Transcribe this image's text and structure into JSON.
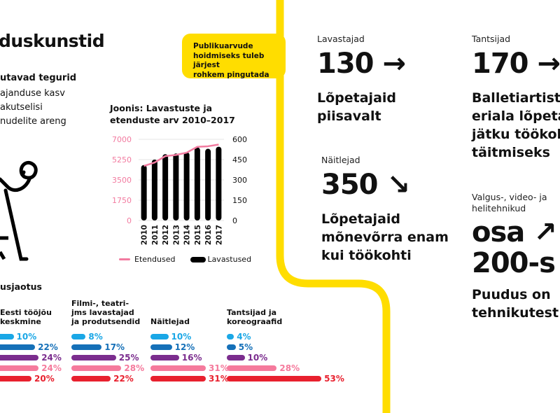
{
  "header": {
    "title": "duskunstid",
    "factors_heading": "utavad tegurid",
    "factors": [
      "ajanduse kasv",
      "akutselisi",
      "nudelite areng"
    ]
  },
  "callout": {
    "text_lines": [
      "Publikuarvude",
      "hoidmiseks tuleb järjest",
      "rohkem pingutada"
    ]
  },
  "colors": {
    "yellow": "#FFDD00",
    "pink_line": "#F27BA0",
    "bars_black": "#000000",
    "light_blue": "#1AA7E6",
    "blue": "#1570B8",
    "purple": "#7B2D8E",
    "pink": "#F57A9C",
    "red": "#E8202E"
  },
  "chart_data": {
    "type": "bar",
    "title": "Joonis: Lavastuste ja etenduste arv 2010–2017",
    "categories": [
      "2010",
      "2011",
      "2012",
      "2013",
      "2014",
      "2015",
      "2016",
      "2017"
    ],
    "series": [
      {
        "name": "Lavastused",
        "type": "bar",
        "axis": "right",
        "values": [
          410,
          450,
          490,
          495,
          505,
          540,
          530,
          545
        ]
      },
      {
        "name": "Etendused",
        "type": "line",
        "axis": "left",
        "values": [
          4700,
          5000,
          5550,
          5650,
          5850,
          6350,
          6400,
          6550
        ]
      }
    ],
    "left_axis": {
      "ticks": [
        "7000",
        "5250",
        "3500",
        "1750",
        "0"
      ],
      "ylim": [
        0,
        7000
      ]
    },
    "right_axis": {
      "ticks": [
        "600",
        "450",
        "300",
        "150",
        "0"
      ],
      "ylim": [
        0,
        600
      ]
    },
    "legend": [
      "Etendused",
      "Lavastused"
    ],
    "legend_position": "bottom",
    "grid": true
  },
  "distribution": {
    "title": "usjaotus",
    "groups": [
      {
        "title_lines": [
          "Eesti tööjõu",
          "keskmine"
        ],
        "values": [
          10,
          22,
          24,
          24,
          20
        ],
        "labels": [
          "10%",
          "22%",
          "24%",
          "24%",
          "20%"
        ]
      },
      {
        "title_lines": [
          "Filmi-, teatri-",
          "jms lavastajad",
          "ja produtsendid"
        ],
        "values": [
          8,
          17,
          25,
          28,
          22
        ],
        "labels": [
          "8%",
          "17%",
          "25%",
          "28%",
          "22%"
        ]
      },
      {
        "title_lines": [
          "Näitlejad"
        ],
        "values": [
          10,
          12,
          16,
          31,
          31
        ],
        "labels": [
          "10%",
          "12%",
          "16%",
          "31%",
          "31%"
        ]
      },
      {
        "title_lines": [
          "Tantsijad ja",
          "koreograafid"
        ],
        "values": [
          4,
          5,
          10,
          28,
          53
        ],
        "labels": [
          "4%",
          "5%",
          "10%",
          "28%",
          "53%"
        ]
      }
    ]
  },
  "stats": [
    {
      "label": "Lavastajad",
      "number": "130",
      "arrow": "→",
      "desc_lines": [
        "Lõpetajaid",
        "piisavalt"
      ]
    },
    {
      "label": "Näitlejad",
      "number": "350",
      "arrow": "↘",
      "desc_lines": [
        "Lõpetajaid",
        "mõnevõrra enam",
        "kui töökohti"
      ]
    },
    {
      "label": "Tantsijad",
      "number": "170",
      "arrow": "→",
      "desc_lines": [
        "Balletiartisti",
        "eriala lõpetajaid",
        "jätku töökohtade",
        "täitmiseks"
      ]
    },
    {
      "label_lines": [
        "Valgus-, video- ja",
        "helitehnikud"
      ],
      "number_lines": [
        "osa",
        "200-s"
      ],
      "arrow": "↗",
      "desc_lines": [
        "Puudus on",
        "tehnikutest"
      ]
    }
  ]
}
